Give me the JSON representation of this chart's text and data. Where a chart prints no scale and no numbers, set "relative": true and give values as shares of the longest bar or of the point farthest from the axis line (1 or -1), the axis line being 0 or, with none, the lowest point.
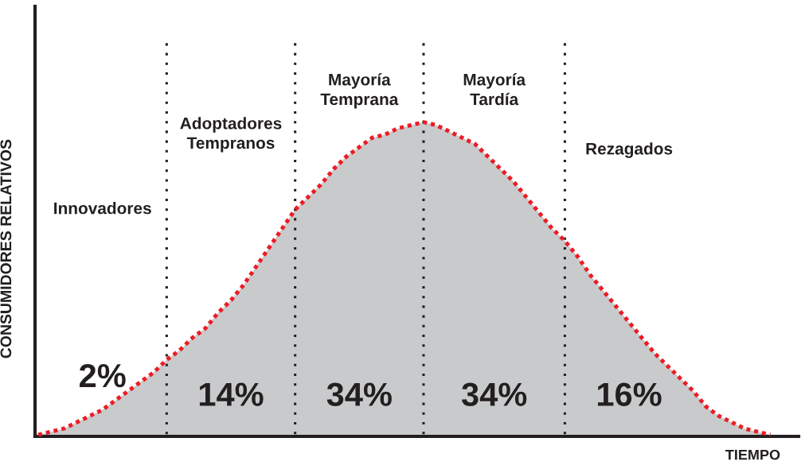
{
  "chart_data": {
    "type": "area",
    "relative": true,
    "grid": "x",
    "xlabel": "TIEMPO",
    "ylabel": "CONSUMIDORES RELATIVOS",
    "categories": [
      null,
      null,
      null,
      null,
      null,
      null,
      null,
      null,
      null,
      null,
      null,
      null,
      null,
      null,
      null,
      null,
      null,
      null,
      null,
      null,
      null,
      null,
      null,
      null,
      null,
      null,
      null,
      null,
      null,
      null,
      null,
      null,
      null,
      null,
      null,
      null,
      null,
      null,
      null,
      null,
      null,
      null,
      null,
      null,
      null,
      null,
      null,
      null,
      null,
      null,
      null,
      null,
      null,
      null,
      null,
      null,
      null,
      null
    ],
    "series": [
      {
        "color": "#ec1c24",
        "line_style": "dotted",
        "values": [
          0,
          0.01,
          0.02,
          0.04,
          0.06,
          0.08,
          0.11,
          0.14,
          0.17,
          0.2,
          0.24,
          0.27,
          0.31,
          0.34,
          0.39,
          0.43,
          0.48,
          0.54,
          0.6,
          0.66,
          0.72,
          0.76,
          0.8,
          0.85,
          0.89,
          0.92,
          0.95,
          0.96,
          0.98,
          0.99,
          1,
          0.99,
          0.97,
          0.95,
          0.93,
          0.89,
          0.85,
          0.81,
          0.76,
          0.71,
          0.66,
          0.62,
          0.57,
          0.51,
          0.46,
          0.41,
          0.36,
          0.31,
          0.26,
          0.22,
          0.18,
          0.14,
          0.09,
          0.06,
          0.04,
          0.02,
          0.01,
          0
        ]
      }
    ],
    "annotations": [
      "Innovadores",
      "Adoptadores\nTempranos",
      "Mayoría\nTemprana",
      "Mayoría\nTardía",
      "Rezagados",
      "2%",
      "14%",
      "34%",
      "34%",
      "16%"
    ]
  }
}
